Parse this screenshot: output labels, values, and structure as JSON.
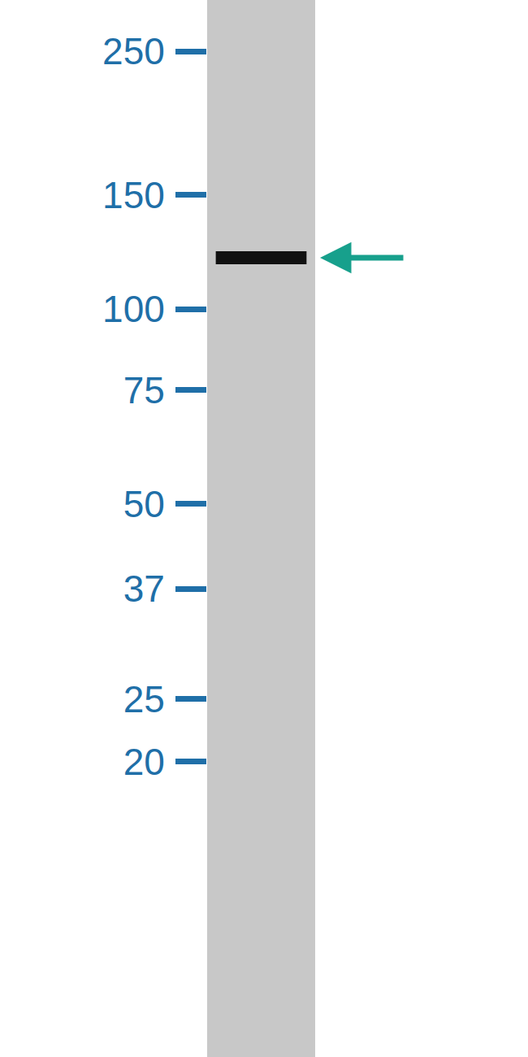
{
  "chart_data": {
    "type": "western_blot",
    "categories": [
      null
    ],
    "values": [
      120
    ],
    "color": "#111111",
    "log": "y",
    "ylim": [
      7,
      300
    ],
    "yticks": [
      250,
      150,
      100,
      75,
      50,
      37,
      25,
      20
    ],
    "tick_labels": "y",
    "grid": false
  }
}
